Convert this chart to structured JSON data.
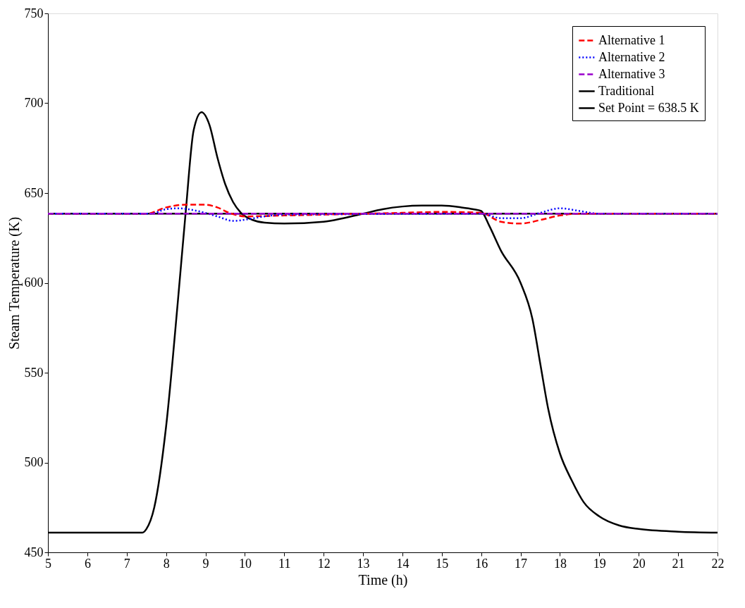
{
  "chart_data": {
    "type": "line",
    "xlabel": "Time (h)",
    "ylabel": "Steam Temperature (K)",
    "xlim": [
      5,
      22
    ],
    "ylim": [
      450,
      750
    ],
    "xticks": [
      5,
      6,
      7,
      8,
      9,
      10,
      11,
      12,
      13,
      14,
      15,
      16,
      17,
      18,
      19,
      20,
      21,
      22
    ],
    "yticks": [
      450,
      500,
      550,
      600,
      650,
      700,
      750
    ],
    "grid": false,
    "legend": "top right",
    "marker": "none",
    "series": [
      {
        "name": "Alternative 1",
        "color": "#ff0000",
        "line_style": "dashed",
        "x": [
          5,
          7.5,
          8.0,
          8.5,
          9.0,
          9.3,
          9.6,
          10,
          11,
          12,
          13,
          14,
          15,
          16,
          16.5,
          17,
          17.5,
          18,
          18.5,
          22
        ],
        "values": [
          638.5,
          638.5,
          642,
          643.5,
          643.5,
          642,
          639,
          637,
          637.5,
          638,
          638.5,
          639,
          639.5,
          639,
          634,
          633,
          635,
          637.5,
          638.5,
          638.5
        ]
      },
      {
        "name": "Alternative 2",
        "color": "#0000ff",
        "line_style": "dotted",
        "x": [
          5,
          7.6,
          8.0,
          8.3,
          8.8,
          9.3,
          9.7,
          10.1,
          10.5,
          11,
          16,
          16.5,
          17,
          17.5,
          18,
          18.5,
          19,
          22
        ],
        "values": [
          638.5,
          638.5,
          641,
          641.5,
          640,
          637,
          634.5,
          635.5,
          637,
          638,
          638.5,
          636,
          636,
          639,
          641.5,
          640,
          638.5,
          638.5
        ]
      },
      {
        "name": "Alternative 3",
        "color": "#9900cc",
        "line_style": "dashed",
        "x": [
          5,
          22
        ],
        "values": [
          638.5,
          638.5
        ]
      },
      {
        "name": "Traditional",
        "color": "#000000",
        "line_style": "solid",
        "x": [
          5,
          7.4,
          7.5,
          7.7,
          8.0,
          8.3,
          8.5,
          8.7,
          8.9,
          9.1,
          9.3,
          9.5,
          9.7,
          9.9,
          10.2,
          10.5,
          11,
          12,
          12.5,
          13,
          13.5,
          14,
          14.5,
          15,
          15.5,
          15.8,
          16.0,
          16.2,
          16.5,
          17,
          17.3,
          17.5,
          17.7,
          18,
          18.3,
          18.6,
          19,
          19.5,
          20,
          21,
          22
        ],
        "values": [
          461,
          461,
          463,
          475,
          520,
          590,
          640,
          685,
          695,
          688,
          670,
          655,
          645,
          639,
          635,
          633.5,
          633,
          634,
          636,
          638.5,
          641,
          642.5,
          643,
          643,
          642,
          641,
          640,
          632,
          618,
          600,
          580,
          555,
          530,
          505,
          490,
          478,
          470,
          465,
          463,
          461.5,
          461
        ]
      },
      {
        "name": "Set Point = 638.5 K",
        "color": "#000000",
        "line_style": "solid",
        "x": [
          5,
          22
        ],
        "values": [
          638.5,
          638.5
        ]
      }
    ]
  }
}
